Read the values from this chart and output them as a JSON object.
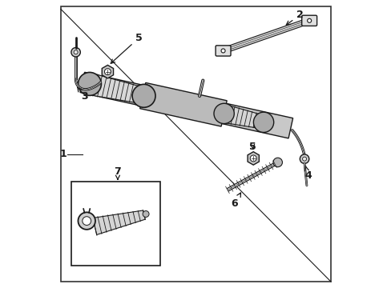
{
  "bg_color": "#ffffff",
  "line_color": "#1a1a1a",
  "border_color": "#333333",
  "fig_width": 4.89,
  "fig_height": 3.6,
  "dpi": 100
}
